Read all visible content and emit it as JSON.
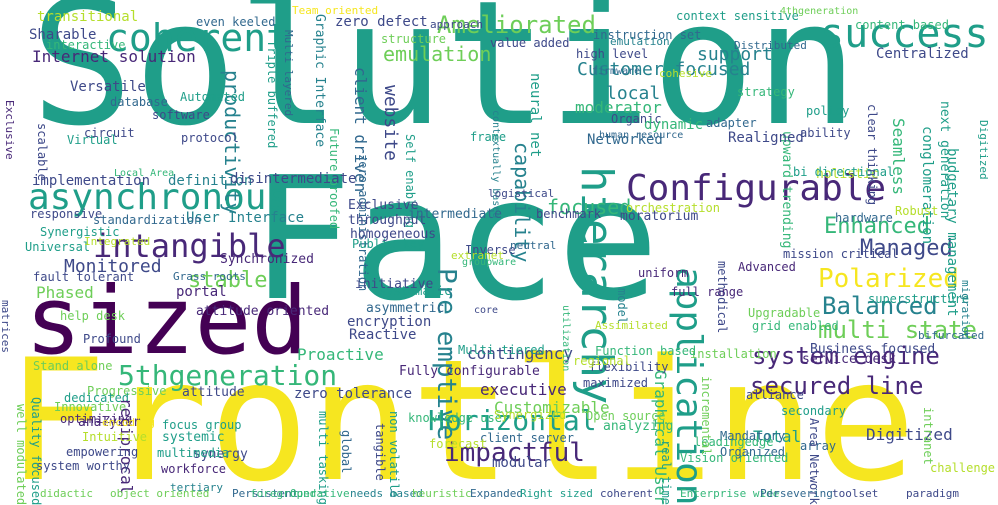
{
  "palette": {
    "yellow": "#f6e620",
    "lime": "#b5de2b",
    "green": "#6ece58",
    "teal": "#35b779",
    "seagreen": "#1f9e89",
    "cyan": "#26828e",
    "blue": "#31688e",
    "indigo": "#3e4989",
    "violet": "#482878",
    "purple": "#440154"
  },
  "words": [
    "Solution",
    "Face",
    "Frontline",
    "sized",
    "Configurable",
    "coherent",
    "success",
    "asynchronous",
    "intangible",
    "Ameliorated",
    "emulation",
    "Customer focused",
    "hierarchy",
    "application",
    "Pre emptive",
    "5thgeneration",
    "Horizontal",
    "impactful",
    "system engine",
    "secured line",
    "Polarized",
    "Balanced",
    "multi state",
    "Enhanced",
    "Managed",
    "stable",
    "Monitored",
    "Phased",
    "Internet solution",
    "Versatile",
    "implementation",
    "definition",
    "User Interface",
    "focused",
    "productivity",
    "capability",
    "website",
    "local",
    "moderator",
    "support",
    "Networked",
    "Proactive",
    "contingency",
    "executive",
    "Customizable",
    "Graphical User",
    "zero tolerance",
    "Reactive",
    "encryption",
    "asymmetric",
    "systemic",
    "synergy",
    "multimedia",
    "Total",
    "Digitized",
    "modular",
    "transitional",
    "Sharable",
    "even keeled",
    "zero defect",
    "Team oriented",
    "structure",
    "instruction set",
    "context sensitive",
    "4thgeneration",
    "content based",
    "Centralized",
    "Distributed",
    "value added",
    "high level",
    "firmware",
    "cohesive",
    "neural net",
    "client driven",
    "Graphic Interface",
    "Triple buffered",
    "Multi layered",
    "Future proofed",
    "zero administration",
    "Self enabling",
    "contextually based",
    "Organic",
    "dynamic",
    "human resource",
    "Seamless",
    "upward trending",
    "Realigned",
    "holistic",
    "conglomeration",
    "budgetary management",
    "next generation",
    "bi directional",
    "clear thinking",
    "Robust",
    "hardware",
    "mission critical",
    "Advanced",
    "methodical",
    "full range",
    "uniform",
    "moratorium",
    "orchestration",
    "benchmark",
    "logistical",
    "Exclusive",
    "throughput",
    "homogeneous",
    "Public key",
    "intermediate",
    "Inverse",
    "extranet",
    "groupware",
    "neutral",
    "disintermediate",
    "initiative",
    "systematic",
    "attitude oriented",
    "portal",
    "Grass roots",
    "Synchronized",
    "fault tolerant",
    "Universal",
    "Synergistic",
    "responsive",
    "standardization",
    "Integrated",
    "Local Area",
    "scalable",
    "circuit",
    "Virtual",
    "database",
    "Automated",
    "software",
    "protocol",
    "strategy",
    "policy",
    "ability",
    "adapter",
    "frame",
    "interactive",
    "help desk",
    "Profound",
    "Stand alone",
    "Progressive",
    "dedicated",
    "Innovative",
    "attitude",
    "optimizing",
    "focus group",
    "reciprocal",
    "Intuitive",
    "empowering",
    "system worthy",
    "workforce",
    "well modulated",
    "Quality focused",
    "analyzer",
    "multi tasking",
    "global",
    "tangible",
    "non volatile",
    "knowledge user",
    "Synergized",
    "analyzing",
    "Vision oriented",
    "real time",
    "leadingedge",
    "Organized",
    "Mandatory",
    "array",
    "Area Network",
    "secondary",
    "intranet",
    "challenge",
    "alliance",
    "service desk",
    "Business focused",
    "installation",
    "incremental",
    "Upgradable",
    "grid enabled",
    "superstructure",
    "Function based",
    "flexibility",
    "regional",
    "maximized",
    "Open source",
    "client server",
    "forecast",
    "Multi tiered",
    "utilization",
    "core",
    "model",
    "Assimilated",
    "Fully configurable",
    "approach",
    "emulation",
    "bifurcated",
    "encoding",
    "tertiary",
    "Persistent",
    "Operative",
    "needs based",
    "heuristic",
    "Expanded",
    "foreground",
    "Right sized",
    "coherent",
    "Enterprise wide",
    "Persevering",
    "toolset",
    "didactic",
    "object oriented",
    "paradigm",
    "migration",
    "matrices",
    "Digitized",
    "Exclusive",
    "moderator",
    "Enhanced"
  ]
}
